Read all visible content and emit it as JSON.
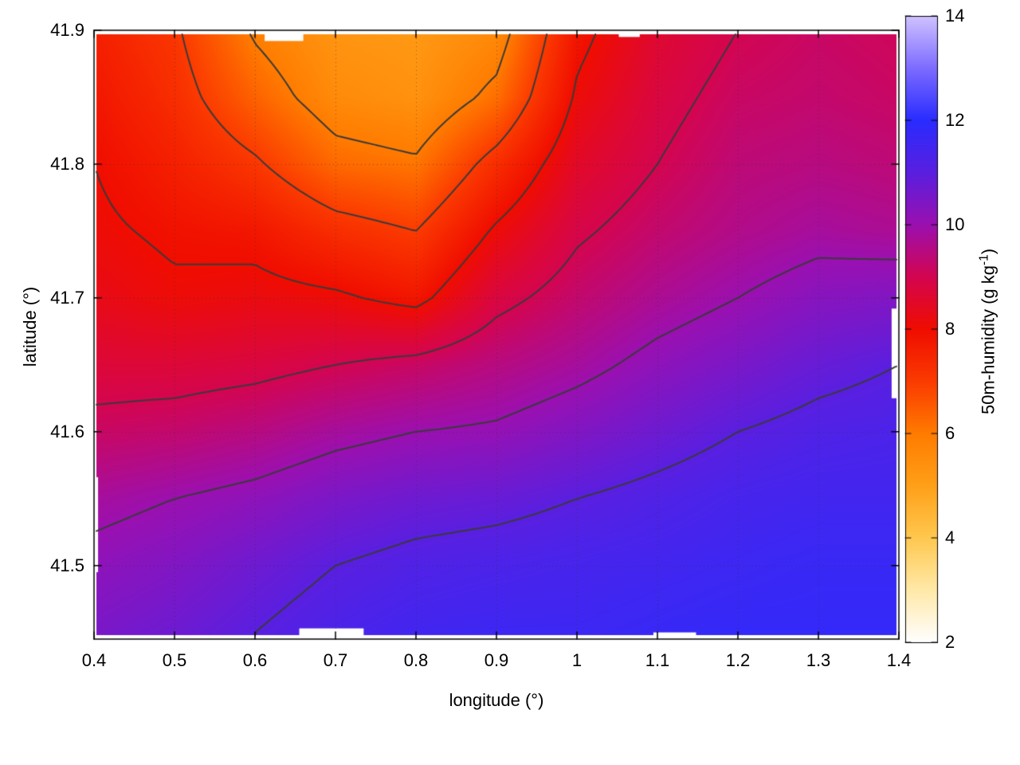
{
  "chart_data": {
    "type": "heatmap",
    "xlabel": "longitude (°)",
    "ylabel": "latitude (°)",
    "colorbar_label_main": "50m-humidity (g kg",
    "colorbar_label_sup": "-1",
    "colorbar_label_close": ")",
    "x_range": [
      0.4,
      1.4
    ],
    "y_range": [
      41.445,
      41.9
    ],
    "cb_range": [
      2,
      14
    ],
    "x": [
      0.4,
      0.5,
      0.6,
      0.7,
      0.8,
      0.9,
      1.0,
      1.1,
      1.2,
      1.3,
      1.4
    ],
    "y": [
      41.9,
      41.85,
      41.8,
      41.75,
      41.7,
      41.65,
      41.6,
      41.55,
      41.5,
      41.45
    ],
    "values": [
      [
        7.6,
        7.1,
        5.9,
        5.3,
        5.2,
        5.6,
        7.8,
        8.6,
        9.0,
        9.2,
        9.1
      ],
      [
        7.8,
        7.3,
        6.4,
        5.6,
        5.4,
        6.2,
        8.1,
        8.8,
        9.2,
        9.3,
        9.2
      ],
      [
        8.0,
        7.6,
        7.1,
        6.3,
        6.1,
        7.3,
        8.5,
        9.0,
        9.4,
        9.5,
        9.4
      ],
      [
        8.1,
        7.9,
        7.8,
        7.3,
        7.0,
        8.1,
        8.9,
        9.3,
        9.6,
        9.8,
        9.7
      ],
      [
        8.3,
        8.1,
        8.2,
        8.1,
        7.8,
        8.8,
        9.3,
        9.7,
        10.0,
        10.3,
        10.4
      ],
      [
        8.7,
        8.7,
        8.8,
        9.0,
        9.2,
        9.5,
        9.8,
        10.2,
        10.5,
        10.8,
        11.0
      ],
      [
        9.2,
        9.3,
        9.5,
        9.8,
        10.0,
        10.1,
        10.4,
        10.7,
        11.0,
        11.2,
        11.3
      ],
      [
        9.8,
        10.0,
        10.2,
        10.5,
        10.7,
        10.8,
        11.0,
        11.2,
        11.4,
        11.5,
        11.5
      ],
      [
        10.2,
        10.4,
        10.7,
        11.0,
        11.2,
        11.3,
        11.4,
        11.5,
        11.6,
        11.7,
        11.7
      ],
      [
        10.5,
        10.7,
        11.0,
        11.3,
        11.5,
        11.6,
        11.6,
        11.7,
        11.8,
        11.8,
        11.8
      ]
    ],
    "x_ticks": {
      "values": [
        0.4,
        0.5,
        0.6,
        0.7,
        0.8,
        0.9,
        1.0,
        1.1,
        1.2,
        1.3,
        1.4
      ],
      "labels": [
        "0.4",
        "0.5",
        "0.6",
        "0.7",
        "0.8",
        "0.9",
        "1",
        "1.1",
        "1.2",
        "1.3",
        "1.4"
      ]
    },
    "y_ticks": {
      "values": [
        41.5,
        41.6,
        41.7,
        41.8,
        41.9
      ],
      "labels": [
        "41.5",
        "41.6",
        "41.7",
        "41.8",
        "41.9"
      ]
    },
    "cb_ticks": {
      "values": [
        2,
        4,
        6,
        8,
        10,
        12,
        14
      ],
      "labels": [
        "2",
        "4",
        "6",
        "8",
        "10",
        "12",
        "14"
      ]
    },
    "contour_levels": [
      6,
      7,
      8,
      9,
      10,
      11
    ],
    "contour_color": "#3a3a3a",
    "grid": "dotted",
    "colormap": [
      {
        "v": 2,
        "c": "#ffffff"
      },
      {
        "v": 3,
        "c": "#ffe9a8"
      },
      {
        "v": 4,
        "c": "#ffc84f"
      },
      {
        "v": 5,
        "c": "#ffa019"
      },
      {
        "v": 6,
        "c": "#ff7c00"
      },
      {
        "v": 7,
        "c": "#fb3b00"
      },
      {
        "v": 8,
        "c": "#f00d00"
      },
      {
        "v": 9,
        "c": "#d40550"
      },
      {
        "v": 10,
        "c": "#9b10b0"
      },
      {
        "v": 11,
        "c": "#5a1fe0"
      },
      {
        "v": 12,
        "c": "#2a2cff"
      },
      {
        "v": 13,
        "c": "#7d6cff"
      },
      {
        "v": 14,
        "c": "#d0c2ff"
      }
    ],
    "data_extent": {
      "lon": [
        0.403,
        1.397
      ],
      "lat": [
        41.448,
        41.897
      ]
    },
    "missing_regions": [
      [
        0.612,
        0.66,
        41.892,
        41.9
      ],
      [
        1.052,
        1.078,
        41.895,
        41.9
      ],
      [
        1.391,
        1.4,
        41.625,
        41.692
      ],
      [
        0.655,
        0.735,
        41.445,
        41.453
      ],
      [
        1.095,
        1.148,
        41.445,
        41.45
      ],
      [
        0.4,
        0.405,
        41.495,
        41.566
      ]
    ]
  }
}
